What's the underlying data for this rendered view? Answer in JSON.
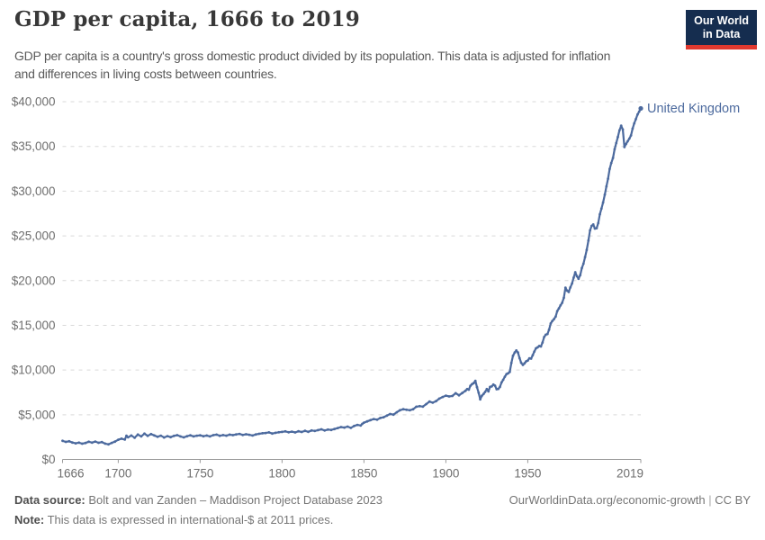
{
  "header": {
    "title": "GDP per capita, 1666 to 2019",
    "subtitle_lines": [
      "GDP per capita is a country's gross domestic product divided by its population. This data is adjusted for inflation",
      "and differences in living costs between countries."
    ],
    "logo": {
      "line1": "Our World",
      "line2": "in Data"
    }
  },
  "colors": {
    "series": "#4C6A9E",
    "grid": "#d9d9d9",
    "axis": "#9a9a9a",
    "axis_text": "#6e6e6e",
    "logo_bg": "#152D4F",
    "logo_stripe": "#E0392F"
  },
  "chart_data": {
    "type": "line",
    "title": "GDP per capita, 1666 to 2019",
    "xlabel": "",
    "ylabel": "",
    "xlim": [
      1666,
      2019
    ],
    "ylim": [
      0,
      40000
    ],
    "x_ticks": [
      1666,
      1700,
      1750,
      1800,
      1850,
      1900,
      1950,
      2019
    ],
    "y_ticks": [
      0,
      5000,
      10000,
      15000,
      20000,
      25000,
      30000,
      35000,
      40000
    ],
    "y_tick_prefix": "$",
    "grid": "horizontal-dashed",
    "legend": "end-of-line-label",
    "series": [
      {
        "name": "United Kingdom",
        "color": "#4C6A9E",
        "points": [
          [
            1666,
            2080
          ],
          [
            1668,
            1960
          ],
          [
            1670,
            2030
          ],
          [
            1672,
            1890
          ],
          [
            1674,
            1800
          ],
          [
            1676,
            1880
          ],
          [
            1678,
            1760
          ],
          [
            1680,
            1840
          ],
          [
            1682,
            1980
          ],
          [
            1684,
            1880
          ],
          [
            1686,
            2000
          ],
          [
            1688,
            1860
          ],
          [
            1690,
            1940
          ],
          [
            1692,
            1770
          ],
          [
            1694,
            1690
          ],
          [
            1696,
            1850
          ],
          [
            1698,
            1990
          ],
          [
            1700,
            2200
          ],
          [
            1702,
            2320
          ],
          [
            1704,
            2220
          ],
          [
            1705,
            2650
          ],
          [
            1706,
            2480
          ],
          [
            1708,
            2680
          ],
          [
            1710,
            2430
          ],
          [
            1712,
            2790
          ],
          [
            1714,
            2580
          ],
          [
            1716,
            2890
          ],
          [
            1718,
            2640
          ],
          [
            1720,
            2840
          ],
          [
            1722,
            2690
          ],
          [
            1724,
            2540
          ],
          [
            1726,
            2660
          ],
          [
            1728,
            2460
          ],
          [
            1730,
            2610
          ],
          [
            1732,
            2500
          ],
          [
            1734,
            2640
          ],
          [
            1736,
            2720
          ],
          [
            1738,
            2580
          ],
          [
            1740,
            2470
          ],
          [
            1742,
            2600
          ],
          [
            1744,
            2700
          ],
          [
            1746,
            2580
          ],
          [
            1748,
            2660
          ],
          [
            1750,
            2700
          ],
          [
            1752,
            2600
          ],
          [
            1754,
            2680
          ],
          [
            1756,
            2580
          ],
          [
            1758,
            2720
          ],
          [
            1760,
            2780
          ],
          [
            1762,
            2650
          ],
          [
            1764,
            2730
          ],
          [
            1766,
            2660
          ],
          [
            1768,
            2780
          ],
          [
            1770,
            2720
          ],
          [
            1772,
            2800
          ],
          [
            1774,
            2860
          ],
          [
            1776,
            2740
          ],
          [
            1778,
            2820
          ],
          [
            1780,
            2760
          ],
          [
            1782,
            2680
          ],
          [
            1784,
            2800
          ],
          [
            1786,
            2870
          ],
          [
            1788,
            2930
          ],
          [
            1790,
            2960
          ],
          [
            1792,
            3030
          ],
          [
            1794,
            2900
          ],
          [
            1796,
            2980
          ],
          [
            1798,
            3040
          ],
          [
            1800,
            3080
          ],
          [
            1802,
            3140
          ],
          [
            1804,
            3040
          ],
          [
            1806,
            3110
          ],
          [
            1808,
            3020
          ],
          [
            1810,
            3150
          ],
          [
            1812,
            3070
          ],
          [
            1814,
            3200
          ],
          [
            1816,
            3090
          ],
          [
            1818,
            3240
          ],
          [
            1820,
            3190
          ],
          [
            1822,
            3280
          ],
          [
            1824,
            3370
          ],
          [
            1826,
            3240
          ],
          [
            1828,
            3340
          ],
          [
            1830,
            3300
          ],
          [
            1832,
            3400
          ],
          [
            1834,
            3510
          ],
          [
            1836,
            3620
          ],
          [
            1838,
            3560
          ],
          [
            1840,
            3670
          ],
          [
            1842,
            3530
          ],
          [
            1844,
            3740
          ],
          [
            1846,
            3860
          ],
          [
            1848,
            3790
          ],
          [
            1849,
            3980
          ],
          [
            1850,
            4120
          ],
          [
            1852,
            4260
          ],
          [
            1854,
            4400
          ],
          [
            1856,
            4520
          ],
          [
            1858,
            4450
          ],
          [
            1860,
            4640
          ],
          [
            1862,
            4720
          ],
          [
            1864,
            4900
          ],
          [
            1866,
            5080
          ],
          [
            1868,
            5010
          ],
          [
            1870,
            5270
          ],
          [
            1872,
            5500
          ],
          [
            1874,
            5620
          ],
          [
            1876,
            5550
          ],
          [
            1878,
            5500
          ],
          [
            1880,
            5620
          ],
          [
            1882,
            5900
          ],
          [
            1884,
            5960
          ],
          [
            1886,
            5910
          ],
          [
            1888,
            6190
          ],
          [
            1890,
            6470
          ],
          [
            1892,
            6350
          ],
          [
            1894,
            6520
          ],
          [
            1896,
            6800
          ],
          [
            1898,
            6980
          ],
          [
            1900,
            7130
          ],
          [
            1902,
            7040
          ],
          [
            1904,
            7100
          ],
          [
            1906,
            7410
          ],
          [
            1908,
            7170
          ],
          [
            1910,
            7430
          ],
          [
            1912,
            7680
          ],
          [
            1913,
            7870
          ],
          [
            1914,
            7800
          ],
          [
            1915,
            8240
          ],
          [
            1916,
            8420
          ],
          [
            1917,
            8530
          ],
          [
            1918,
            8780
          ],
          [
            1919,
            8080
          ],
          [
            1920,
            7460
          ],
          [
            1921,
            6720
          ],
          [
            1922,
            7110
          ],
          [
            1923,
            7330
          ],
          [
            1924,
            7560
          ],
          [
            1925,
            7870
          ],
          [
            1926,
            7610
          ],
          [
            1927,
            8110
          ],
          [
            1928,
            8170
          ],
          [
            1929,
            8370
          ],
          [
            1930,
            8250
          ],
          [
            1931,
            7850
          ],
          [
            1932,
            7890
          ],
          [
            1933,
            8110
          ],
          [
            1934,
            8610
          ],
          [
            1935,
            8910
          ],
          [
            1936,
            9250
          ],
          [
            1937,
            9550
          ],
          [
            1938,
            9630
          ],
          [
            1939,
            9790
          ],
          [
            1940,
            10790
          ],
          [
            1941,
            11590
          ],
          [
            1942,
            11950
          ],
          [
            1943,
            12190
          ],
          [
            1944,
            11950
          ],
          [
            1945,
            11330
          ],
          [
            1946,
            10810
          ],
          [
            1947,
            10570
          ],
          [
            1948,
            10750
          ],
          [
            1949,
            10970
          ],
          [
            1950,
            11060
          ],
          [
            1951,
            11310
          ],
          [
            1952,
            11270
          ],
          [
            1953,
            11650
          ],
          [
            1954,
            12070
          ],
          [
            1955,
            12430
          ],
          [
            1956,
            12530
          ],
          [
            1957,
            12690
          ],
          [
            1958,
            12630
          ],
          [
            1959,
            13070
          ],
          [
            1960,
            13690
          ],
          [
            1961,
            13950
          ],
          [
            1962,
            14030
          ],
          [
            1963,
            14510
          ],
          [
            1964,
            15210
          ],
          [
            1965,
            15490
          ],
          [
            1966,
            15690
          ],
          [
            1967,
            15970
          ],
          [
            1968,
            16590
          ],
          [
            1969,
            16890
          ],
          [
            1970,
            17230
          ],
          [
            1971,
            17510
          ],
          [
            1972,
            18070
          ],
          [
            1973,
            19210
          ],
          [
            1974,
            18870
          ],
          [
            1975,
            18730
          ],
          [
            1976,
            19230
          ],
          [
            1977,
            19670
          ],
          [
            1978,
            20330
          ],
          [
            1979,
            20930
          ],
          [
            1980,
            20490
          ],
          [
            1981,
            20210
          ],
          [
            1982,
            20610
          ],
          [
            1983,
            21390
          ],
          [
            1984,
            21890
          ],
          [
            1985,
            22630
          ],
          [
            1986,
            23430
          ],
          [
            1987,
            24470
          ],
          [
            1988,
            25610
          ],
          [
            1989,
            26110
          ],
          [
            1990,
            26270
          ],
          [
            1991,
            25810
          ],
          [
            1992,
            25850
          ],
          [
            1993,
            26430
          ],
          [
            1994,
            27410
          ],
          [
            1995,
            28050
          ],
          [
            1996,
            28730
          ],
          [
            1997,
            29610
          ],
          [
            1998,
            30530
          ],
          [
            1999,
            31390
          ],
          [
            2000,
            32470
          ],
          [
            2001,
            33150
          ],
          [
            2002,
            33710
          ],
          [
            2003,
            34690
          ],
          [
            2004,
            35370
          ],
          [
            2005,
            36050
          ],
          [
            2006,
            36790
          ],
          [
            2007,
            37310
          ],
          [
            2008,
            36890
          ],
          [
            2009,
            34930
          ],
          [
            2010,
            35270
          ],
          [
            2011,
            35570
          ],
          [
            2012,
            35870
          ],
          [
            2013,
            36230
          ],
          [
            2014,
            36990
          ],
          [
            2015,
            37570
          ],
          [
            2016,
            38050
          ],
          [
            2017,
            38570
          ],
          [
            2018,
            38890
          ],
          [
            2019,
            39250
          ]
        ]
      }
    ]
  },
  "footer": {
    "data_source_label": "Data source:",
    "data_source": "Bolt and van Zanden – Maddison Project Database 2023",
    "note_label": "Note:",
    "note": "This data is expressed in international-$ at 2011 prices.",
    "url": "OurWorldinData.org/economic-growth",
    "separator": "|",
    "license": "CC BY"
  }
}
